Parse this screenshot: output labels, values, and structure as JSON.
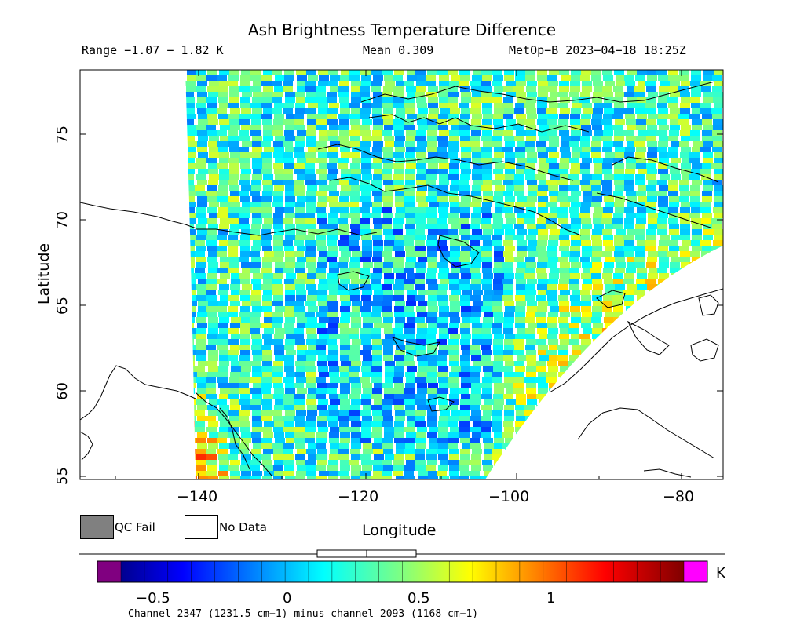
{
  "header": {
    "title": "Ash Brightness Temperature Difference",
    "range": "Range −1.07 − 1.82 K",
    "mean": "Mean 0.309",
    "satellite_time": "MetOp−B 2023−04−18 18:25Z"
  },
  "axes": {
    "y_title": "Latitude",
    "x_title": "Longitude",
    "y_ticks": [
      "75",
      "70",
      "65",
      "60",
      "55"
    ],
    "x_ticks": [
      "−140",
      "−120",
      "−100",
      "−80"
    ],
    "lon_range": [
      -153,
      -76
    ],
    "lat_range": [
      54.5,
      78.5
    ]
  },
  "legend": {
    "qc_fail_label": "QC Fail",
    "qc_fail_color": "#808080",
    "no_data_label": "No Data",
    "no_data_color": "#ffffff"
  },
  "colorbar": {
    "ticks": [
      "−0.5",
      "0",
      "0.5",
      "1"
    ],
    "units": "K",
    "under_color": "#800080",
    "over_color": "#ff00ff",
    "colormap": "jet"
  },
  "footer": {
    "channel_text": "Channel 2347 (1231.5 cm−1) minus channel 2093 (1168 cm−1)"
  },
  "map": {
    "projection": "Mercator",
    "coastlines": true,
    "swath": "MetOp-B IASI pixel swath over northern Canada and Alaska"
  }
}
